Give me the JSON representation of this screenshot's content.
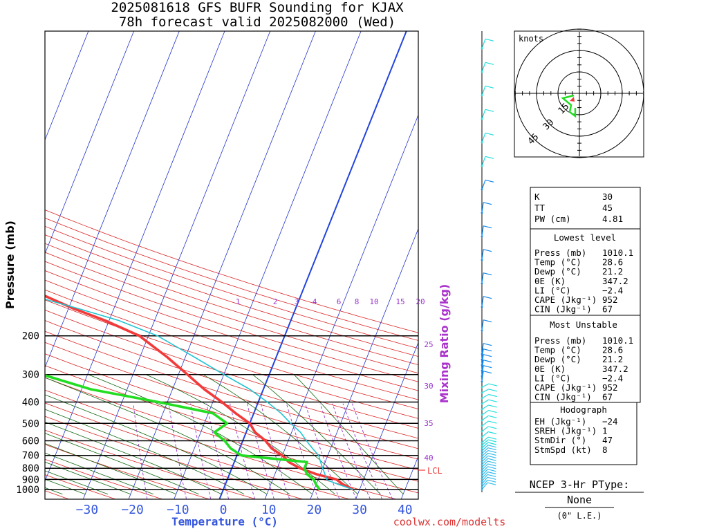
{
  "header": {
    "line1": "2025081618 GFS BUFR Sounding for KJAX",
    "line2": "78h forecast valid 2025082000 (Wed)"
  },
  "footer": {
    "credit": "coolwx.com/modelts"
  },
  "colors": {
    "temp": "#f23a3a",
    "dewp": "#22dd22",
    "parcel": "#22c4d2",
    "isotherm": "#2233cc",
    "dry_adiabat": "#dd2222",
    "moist_adiabat": "#116611",
    "mixing_ratio": "#9933cc",
    "freezing": "#2244dd",
    "wind": "#1188ee",
    "wind_upper": "#22dddd"
  },
  "chart_data": {
    "type": "line",
    "xlabel": "Temperature (°C)",
    "ylabel": "Pressure (mb)",
    "xticks": [
      "−30",
      "−20",
      "−10",
      "0",
      "10",
      "20",
      "30",
      "40"
    ],
    "yticks": [
      "200",
      "300",
      "400",
      "500",
      "600",
      "700",
      "800",
      "900",
      "1000"
    ],
    "skew_axis_label": "Mixing Ratio (g/kg)",
    "mixing_ratio_labels": [
      "1",
      "2",
      "3",
      "4",
      "6",
      "8",
      "10",
      "15",
      "20",
      "25",
      "30",
      "35",
      "40"
    ],
    "lcl_label": "LCL",
    "series": [
      {
        "key": "temp",
        "x": [
          28.6,
          26,
          24,
          19,
          15,
          12,
          10,
          7,
          5,
          2,
          0,
          -4,
          -8,
          -13,
          -18,
          -24,
          -32,
          -41,
          -49,
          -57,
          -65
        ],
        "y": [
          1000,
          950,
          900,
          850,
          800,
          750,
          700,
          650,
          600,
          550,
          500,
          450,
          400,
          350,
          300,
          250,
          200,
          170,
          150,
          130,
          115
        ]
      },
      {
        "key": "dewp",
        "x": [
          21.2,
          20,
          19,
          17,
          16,
          16,
          1,
          -2,
          -4,
          -7,
          -5,
          -9,
          -22,
          -38,
          -50,
          -55,
          -57,
          -63,
          -68,
          -70
        ],
        "y": [
          1000,
          950,
          900,
          850,
          800,
          750,
          700,
          650,
          600,
          550,
          500,
          450,
          400,
          350,
          300,
          250,
          200,
          190,
          180,
          160
        ]
      },
      {
        "key": "parcel",
        "x": [
          28.6,
          25,
          22,
          21,
          20,
          19,
          18,
          16,
          14,
          12,
          9,
          6,
          2,
          -3,
          -10,
          -18,
          -28,
          -38,
          -48,
          -60
        ],
        "y": [
          1000,
          950,
          905,
          850,
          800,
          750,
          700,
          650,
          600,
          550,
          500,
          450,
          400,
          350,
          300,
          250,
          200,
          170,
          150,
          130
        ]
      }
    ],
    "indices": {
      "k_label": "K",
      "k": "30",
      "tt_label": "TT",
      "tt": "45",
      "pw_label": "PW (cm)",
      "pw": "4.81"
    },
    "lowest_level": {
      "title": "Lowest level",
      "rows": [
        [
          "Press (mb)",
          "1010.1"
        ],
        [
          "Temp (°C)",
          "28.6"
        ],
        [
          "Dewp (°C)",
          "21.2"
        ],
        [
          "θE (K)",
          "347.2"
        ],
        [
          "LI (°C)",
          "−2.4"
        ],
        [
          "CAPE (Jkg⁻¹)",
          "952"
        ],
        [
          "CIN (Jkg⁻¹)",
          "67"
        ]
      ]
    },
    "most_unstable": {
      "title": "Most Unstable",
      "rows": [
        [
          "Press (mb)",
          "1010.1"
        ],
        [
          "Temp (°C)",
          "28.6"
        ],
        [
          "Dewp (°C)",
          "21.2"
        ],
        [
          "θE (K)",
          "347.2"
        ],
        [
          "LI (°C)",
          "−2.4"
        ],
        [
          "CAPE (Jkg⁻¹)",
          "952"
        ],
        [
          "CIN (Jkg⁻¹)",
          "67"
        ]
      ]
    },
    "hodograph": {
      "title": "Hodograph",
      "units_label": "knots",
      "ring_labels": [
        "15",
        "30",
        "45"
      ],
      "rows": [
        [
          "EH (Jkg⁻¹)",
          "−24"
        ],
        [
          "SREH (Jkg⁻¹)",
          "1"
        ],
        [
          "StmDir (°)",
          "47"
        ],
        [
          "StmSpd (kt)",
          "8"
        ]
      ]
    },
    "ptype": {
      "title": "NCEP 3-Hr PType:",
      "value": "None",
      "note": "(0\" L.E.)"
    }
  }
}
